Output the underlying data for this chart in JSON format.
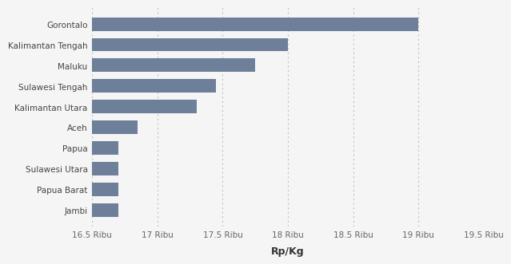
{
  "provinces": [
    "Jambi",
    "Papua Barat",
    "Sulawesi Utara",
    "Papua",
    "Aceh",
    "Kalimantan Utara",
    "Sulawesi Tengah",
    "Maluku",
    "Kalimantan Tengah",
    "Gorontalo"
  ],
  "values": [
    16700,
    16700,
    16700,
    16700,
    16850,
    17300,
    17450,
    17750,
    18000,
    19000
  ],
  "bar_color": "#6d7f99",
  "background_color": "#f5f5f5",
  "plot_bg_color": "#f5f5f5",
  "xlabel": "Rp/Kg",
  "xlim_min": 16500,
  "xlim_max": 19500,
  "xtick_values": [
    16500,
    17000,
    17500,
    18000,
    18500,
    19000,
    19500
  ],
  "xtick_labels": [
    "16.5 Ribu",
    "17 Ribu",
    "17.5 Ribu",
    "18 Ribu",
    "18.5 Ribu",
    "19 Ribu",
    "19.5 Ribu"
  ],
  "grid_color": "#c0c0c0",
  "bar_height": 0.65,
  "ylabel_fontsize": 7.5,
  "xlabel_fontsize": 7.5,
  "label_fontsize": 9
}
